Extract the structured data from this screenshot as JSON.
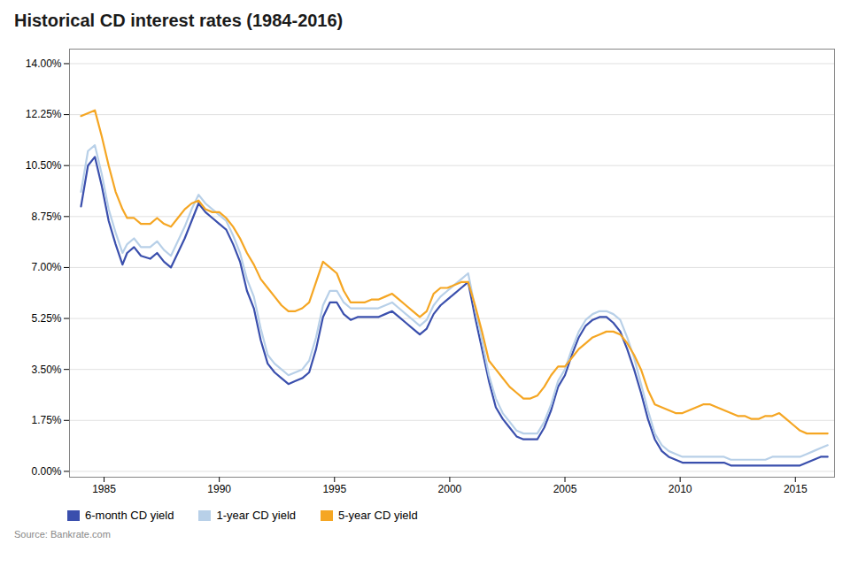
{
  "chart_data": {
    "type": "line",
    "title": "Historical CD interest rates (1984-2016)",
    "annotations": [
      "Source: Bankrate.com"
    ],
    "x": [
      1984.0,
      1984.3,
      1984.6,
      1984.9,
      1985.2,
      1985.5,
      1985.8,
      1986.0,
      1986.3,
      1986.6,
      1987.0,
      1987.3,
      1987.6,
      1987.9,
      1988.2,
      1988.5,
      1988.8,
      1989.1,
      1989.4,
      1989.7,
      1990.0,
      1990.3,
      1990.6,
      1990.9,
      1991.2,
      1991.5,
      1991.8,
      1992.1,
      1992.4,
      1992.7,
      1993.0,
      1993.3,
      1993.6,
      1993.9,
      1994.2,
      1994.5,
      1994.8,
      1995.1,
      1995.4,
      1995.7,
      1996.0,
      1996.3,
      1996.6,
      1996.9,
      1997.2,
      1997.5,
      1997.8,
      1998.1,
      1998.4,
      1998.7,
      1999.0,
      1999.3,
      1999.6,
      1999.9,
      2000.2,
      2000.5,
      2000.8,
      2001.1,
      2001.4,
      2001.7,
      2002.0,
      2002.3,
      2002.6,
      2002.9,
      2003.2,
      2003.5,
      2003.8,
      2004.1,
      2004.4,
      2004.7,
      2005.0,
      2005.3,
      2005.6,
      2005.9,
      2006.2,
      2006.5,
      2006.8,
      2007.1,
      2007.4,
      2007.7,
      2008.0,
      2008.3,
      2008.6,
      2008.9,
      2009.2,
      2009.5,
      2009.8,
      2010.1,
      2010.4,
      2010.7,
      2011.0,
      2011.3,
      2011.6,
      2011.9,
      2012.2,
      2012.5,
      2012.8,
      2013.1,
      2013.4,
      2013.7,
      2014.0,
      2014.3,
      2014.6,
      2014.9,
      2015.2,
      2015.5,
      2015.8,
      2016.1,
      2016.4
    ],
    "series": [
      {
        "name": "6-month CD yield",
        "color": "#3a4fad",
        "values": [
          9.1,
          10.5,
          10.8,
          9.8,
          8.6,
          7.8,
          7.1,
          7.5,
          7.7,
          7.4,
          7.3,
          7.5,
          7.2,
          7.0,
          7.5,
          8.0,
          8.6,
          9.2,
          8.9,
          8.7,
          8.5,
          8.3,
          7.8,
          7.2,
          6.2,
          5.6,
          4.5,
          3.7,
          3.4,
          3.2,
          3.0,
          3.1,
          3.2,
          3.4,
          4.2,
          5.3,
          5.8,
          5.8,
          5.4,
          5.2,
          5.3,
          5.3,
          5.3,
          5.3,
          5.4,
          5.5,
          5.3,
          5.1,
          4.9,
          4.7,
          4.9,
          5.4,
          5.7,
          5.9,
          6.1,
          6.3,
          6.5,
          5.3,
          4.2,
          3.1,
          2.2,
          1.8,
          1.5,
          1.2,
          1.1,
          1.1,
          1.1,
          1.5,
          2.1,
          2.9,
          3.3,
          4.0,
          4.6,
          5.0,
          5.2,
          5.3,
          5.3,
          5.1,
          4.8,
          4.2,
          3.5,
          2.7,
          1.8,
          1.1,
          0.7,
          0.5,
          0.4,
          0.3,
          0.3,
          0.3,
          0.3,
          0.3,
          0.3,
          0.3,
          0.2,
          0.2,
          0.2,
          0.2,
          0.2,
          0.2,
          0.2,
          0.2,
          0.2,
          0.2,
          0.2,
          0.3,
          0.4,
          0.5,
          0.5
        ]
      },
      {
        "name": "1-year CD yield",
        "color": "#b8d0e8",
        "values": [
          9.6,
          11.0,
          11.2,
          10.2,
          9.0,
          8.2,
          7.5,
          7.8,
          8.0,
          7.7,
          7.7,
          7.9,
          7.6,
          7.4,
          7.9,
          8.4,
          9.0,
          9.5,
          9.2,
          9.0,
          8.8,
          8.6,
          8.1,
          7.5,
          6.6,
          6.0,
          4.9,
          4.0,
          3.7,
          3.5,
          3.3,
          3.4,
          3.5,
          3.8,
          4.6,
          5.7,
          6.2,
          6.2,
          5.8,
          5.6,
          5.6,
          5.6,
          5.6,
          5.6,
          5.7,
          5.8,
          5.6,
          5.4,
          5.2,
          5.0,
          5.2,
          5.7,
          6.0,
          6.2,
          6.4,
          6.6,
          6.8,
          5.6,
          4.5,
          3.3,
          2.5,
          2.0,
          1.7,
          1.4,
          1.3,
          1.3,
          1.3,
          1.7,
          2.3,
          3.1,
          3.5,
          4.2,
          4.8,
          5.2,
          5.4,
          5.5,
          5.5,
          5.4,
          5.2,
          4.6,
          3.9,
          3.0,
          2.1,
          1.3,
          0.9,
          0.7,
          0.6,
          0.5,
          0.5,
          0.5,
          0.5,
          0.5,
          0.5,
          0.5,
          0.4,
          0.4,
          0.4,
          0.4,
          0.4,
          0.4,
          0.5,
          0.5,
          0.5,
          0.5,
          0.5,
          0.6,
          0.7,
          0.8,
          0.9
        ]
      },
      {
        "name": "5-year CD yield",
        "color": "#f5a623",
        "values": [
          12.2,
          12.3,
          12.4,
          11.5,
          10.5,
          9.6,
          9.0,
          8.7,
          8.7,
          8.5,
          8.5,
          8.7,
          8.5,
          8.4,
          8.7,
          9.0,
          9.2,
          9.3,
          9.0,
          8.9,
          8.9,
          8.7,
          8.4,
          8.0,
          7.5,
          7.1,
          6.6,
          6.3,
          6.0,
          5.7,
          5.5,
          5.5,
          5.6,
          5.8,
          6.5,
          7.2,
          7.0,
          6.8,
          6.2,
          5.8,
          5.8,
          5.8,
          5.9,
          5.9,
          6.0,
          6.1,
          5.9,
          5.7,
          5.5,
          5.3,
          5.5,
          6.1,
          6.3,
          6.3,
          6.4,
          6.5,
          6.5,
          5.7,
          4.8,
          3.8,
          3.5,
          3.2,
          2.9,
          2.7,
          2.5,
          2.5,
          2.6,
          2.9,
          3.3,
          3.6,
          3.6,
          3.9,
          4.2,
          4.4,
          4.6,
          4.7,
          4.8,
          4.8,
          4.7,
          4.4,
          4.0,
          3.5,
          2.8,
          2.3,
          2.2,
          2.1,
          2.0,
          2.0,
          2.1,
          2.2,
          2.3,
          2.3,
          2.2,
          2.1,
          2.0,
          1.9,
          1.9,
          1.8,
          1.8,
          1.9,
          1.9,
          2.0,
          1.8,
          1.6,
          1.4,
          1.3,
          1.3,
          1.3,
          1.3
        ]
      }
    ],
    "xlim": [
      1983.5,
      2016.7
    ],
    "xticks": [
      1985,
      1990,
      1995,
      2000,
      2005,
      2010,
      2015
    ],
    "ylim": [
      -0.2,
      14.5
    ],
    "yticks": [
      {
        "value": 0.0,
        "label": "0.00%"
      },
      {
        "value": 1.75,
        "label": "1.75%"
      },
      {
        "value": 3.5,
        "label": "3.50%"
      },
      {
        "value": 5.25,
        "label": "5.25%"
      },
      {
        "value": 7.0,
        "label": "7.00%"
      },
      {
        "value": 8.75,
        "label": "8.75%"
      },
      {
        "value": 10.5,
        "label": "10.50%"
      },
      {
        "value": 12.25,
        "label": "12.25%"
      },
      {
        "value": 14.0,
        "label": "14.00%"
      }
    ],
    "grid": true,
    "legend": "bottom"
  }
}
